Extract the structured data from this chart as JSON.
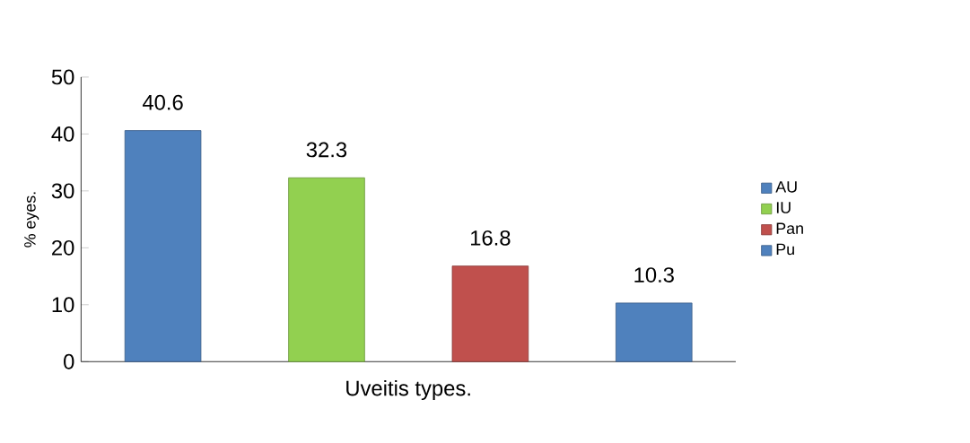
{
  "chart_data": {
    "type": "bar",
    "xlabel": "Uveitis types.",
    "ylabel": "% eyes.",
    "categories": [
      null,
      null,
      null,
      null
    ],
    "series": [
      {
        "name": "AU",
        "color": "#4f81bd",
        "values": [
          40.6,
          null,
          null,
          null
        ]
      },
      {
        "name": "IU",
        "color": "#92d050",
        "values": [
          null,
          32.3,
          null,
          null
        ]
      },
      {
        "name": "Pan",
        "color": "#c0504d",
        "values": [
          null,
          null,
          16.8,
          null
        ]
      },
      {
        "name": "Pu",
        "color": "#4f81bd",
        "values": [
          null,
          null,
          null,
          10.3
        ]
      }
    ],
    "ylim": [
      0,
      50
    ],
    "yticks": [
      0,
      10,
      20,
      30,
      40,
      50
    ],
    "data_labels": true,
    "legend": "right",
    "grid": false
  }
}
